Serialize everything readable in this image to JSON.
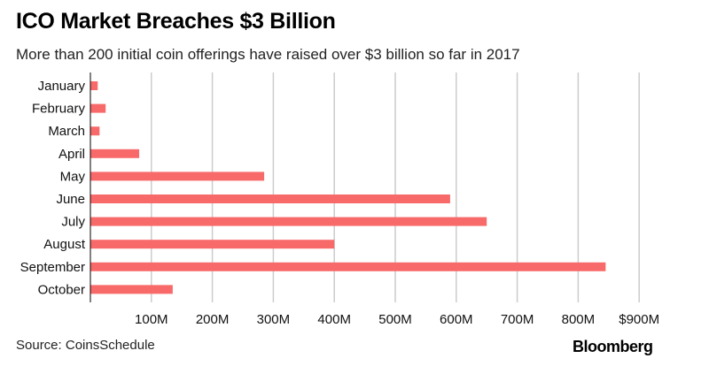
{
  "title": "ICO Market Breaches $3 Billion",
  "subtitle": "More than 200 initial coin offerings have raised over $3 billion so far in 2017",
  "source": "Source: CoinsSchedule",
  "brand": "Bloomberg",
  "colors": {
    "bar": "#f86a6a",
    "grid": "#cccccc",
    "axis": "#000000"
  },
  "chart_data": {
    "type": "bar",
    "orientation": "horizontal",
    "title": "ICO Market Breaches $3 Billion",
    "categories": [
      "January",
      "February",
      "March",
      "April",
      "May",
      "June",
      "July",
      "August",
      "September",
      "October"
    ],
    "values": [
      12,
      25,
      15,
      80,
      285,
      590,
      650,
      400,
      845,
      135
    ],
    "unit": "M USD",
    "xlim": [
      0,
      900
    ],
    "ticks": [
      100,
      200,
      300,
      400,
      500,
      600,
      700,
      800,
      900
    ],
    "tick_labels": [
      "100M",
      "200M",
      "300M",
      "400M",
      "500M",
      "600M",
      "700M",
      "800M",
      "$900M"
    ],
    "grid": true,
    "xlabel": "",
    "ylabel": ""
  }
}
